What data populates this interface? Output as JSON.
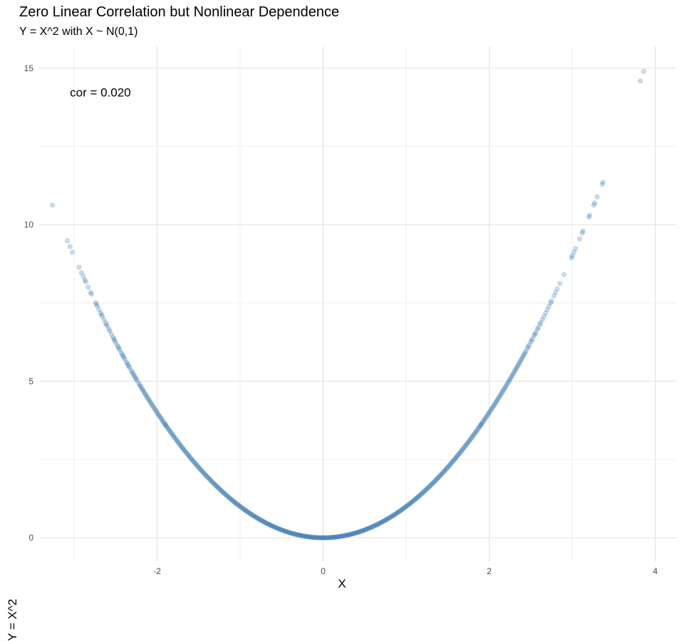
{
  "chart_data": {
    "type": "scatter",
    "title": "Zero Linear Correlation but Nonlinear Dependence",
    "subtitle": "Y = X^2 with X ~ N(0,1)",
    "xlabel": "X",
    "ylabel": "Y = X^2",
    "xlim": [
      -3.42,
      4.26
    ],
    "ylim": [
      -0.75,
      15.7
    ],
    "xticks": [
      -2,
      0,
      2,
      4
    ],
    "xtick_labels": [
      "-2",
      "0",
      "2",
      "4"
    ],
    "yticks": [
      0,
      5,
      10,
      15
    ],
    "ytick_labels": [
      "0",
      "5",
      "10",
      "15"
    ],
    "grid": true,
    "annotation": "cor = 0.020",
    "point_color": "#2b6fa8",
    "point_alpha": 0.25,
    "points": {
      "relationship": "y = x^2",
      "x": [
        -3.26,
        -3.08,
        -3.05,
        -3.02,
        -2.94,
        -2.91,
        -2.89,
        -2.87,
        -2.86,
        -2.83,
        -2.8,
        -2.79,
        -2.74,
        -2.73,
        -2.72,
        -2.7,
        -2.68,
        -2.67,
        -2.66,
        -2.64,
        -2.62,
        -2.61,
        -2.6,
        -2.58,
        -2.57,
        -2.55,
        -2.53,
        -2.52,
        -2.51,
        -2.5,
        -2.48,
        -2.47,
        -2.46,
        -2.45,
        -2.43,
        -2.42,
        -2.41,
        -2.4,
        -2.39,
        -2.37,
        -2.36,
        -2.35,
        -2.34,
        -2.33,
        -2.31,
        -2.3,
        -2.29,
        -2.28,
        -2.27,
        -2.26,
        -2.25,
        -2.24,
        -2.22,
        -2.21,
        -2.2,
        -2.19,
        -2.18,
        -2.17,
        -2.16,
        -2.15,
        -2.14,
        -2.13,
        -2.12,
        -2.11,
        -2.1,
        -2.09,
        -2.08,
        -2.07,
        -2.06,
        -2.05,
        -2.04,
        -2.03,
        -2.02,
        -2.01,
        -2.0,
        -1.99,
        -1.98,
        -1.97,
        -1.96,
        -1.95,
        -1.94,
        -1.93,
        -1.92,
        -1.91,
        -1.9,
        1.9,
        1.91,
        1.92,
        1.93,
        1.94,
        1.95,
        1.96,
        1.97,
        1.98,
        1.99,
        2.0,
        2.01,
        2.02,
        2.03,
        2.04,
        2.05,
        2.06,
        2.07,
        2.08,
        2.09,
        2.1,
        2.11,
        2.12,
        2.13,
        2.14,
        2.15,
        2.16,
        2.17,
        2.18,
        2.19,
        2.2,
        2.21,
        2.22,
        2.23,
        2.24,
        2.25,
        2.26,
        2.27,
        2.28,
        2.29,
        2.3,
        2.31,
        2.32,
        2.33,
        2.34,
        2.35,
        2.36,
        2.37,
        2.38,
        2.39,
        2.4,
        2.41,
        2.42,
        2.43,
        2.44,
        2.46,
        2.47,
        2.48,
        2.5,
        2.51,
        2.52,
        2.54,
        2.55,
        2.56,
        2.58,
        2.59,
        2.61,
        2.62,
        2.64,
        2.66,
        2.68,
        2.7,
        2.72,
        2.74,
        2.75,
        2.78,
        2.8,
        2.82,
        2.85,
        2.9,
        2.99,
        3.0,
        3.02,
        3.04,
        3.09,
        3.12,
        3.13,
        3.2,
        3.21,
        3.26,
        3.27,
        3.3,
        3.36,
        3.37,
        3.82,
        3.86
      ],
      "dense_band_x_range": [
        -1.9,
        1.9
      ]
    }
  }
}
